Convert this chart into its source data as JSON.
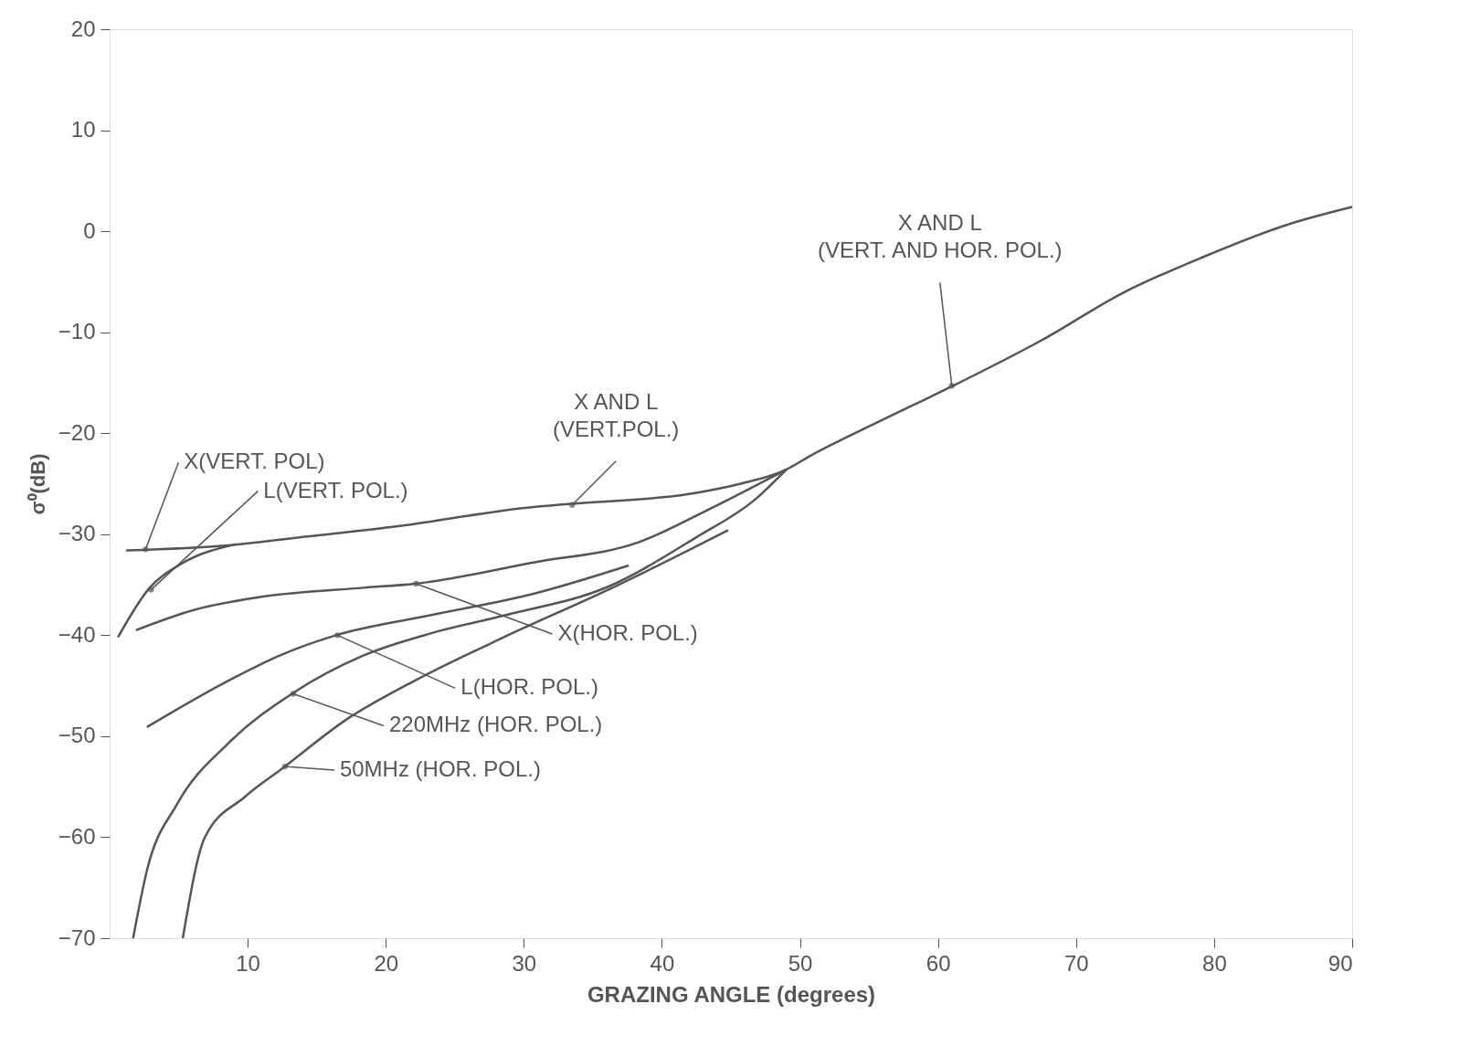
{
  "chart_data": {
    "type": "line",
    "xlabel": "GRAZING ANGLE (degrees)",
    "ylabel": "σ⁰(dB)",
    "xlim": [
      0,
      90
    ],
    "xticks": [
      10,
      20,
      30,
      40,
      50,
      60,
      70,
      80,
      90
    ],
    "ylim": [
      -70,
      20
    ],
    "yticks": [
      -70,
      -60,
      -50,
      -40,
      -30,
      -20,
      -10,
      0,
      10,
      20
    ],
    "grid": false,
    "series": [
      {
        "color": "#555555",
        "x": [
          1.2,
          8.6,
          14.5,
          20.9,
          30.7,
          33.4,
          42.5,
          45.7,
          49,
          50.8,
          55.8,
          60.8,
          67.5,
          73.4,
          79.3,
          85.2,
          90
        ],
        "values": [
          -31.6,
          -31.1,
          -30.2,
          -29.2,
          -27.3,
          -27.0,
          -25.9,
          -25.0,
          -23.6,
          -22.2,
          -18.8,
          -15.5,
          -10.8,
          -6.1,
          -2.5,
          0.6,
          2.4
        ]
      },
      {
        "color": "#555555",
        "x": [
          0.6,
          2.9,
          5.1,
          9.1
        ],
        "values": [
          -40.2,
          -35.3,
          -33,
          -31.0
        ]
      },
      {
        "color": "#555555",
        "x": [
          1.9,
          6.1,
          11,
          18.4,
          22.1,
          30.7,
          38.3,
          43.6,
          49
        ],
        "values": [
          -39.5,
          -37.5,
          -36.2,
          -35.3,
          -34.9,
          -32.8,
          -30.8,
          -27.4,
          -23.6
        ]
      },
      {
        "color": "#555555",
        "x": [
          2.7,
          8.6,
          12.5,
          16.4,
          23.3,
          30.7,
          37.6
        ],
        "values": [
          -49.1,
          -44.5,
          -41.9,
          -40.0,
          -38.0,
          -35.9,
          -33.1
        ]
      },
      {
        "color": "#555555",
        "x": [
          1.7,
          2.7,
          4.9,
          8.6,
          13.2,
          18.4,
          23.3,
          28.7,
          36.1,
          42.5,
          46.8,
          49
        ],
        "values": [
          -70,
          -63.3,
          -56.7,
          -50.7,
          -45.8,
          -42,
          -39.8,
          -38.0,
          -35.2,
          -30.3,
          -26.5,
          -23.6
        ]
      },
      {
        "color": "#555555",
        "x": [
          5.3,
          6.9,
          9.8,
          12.5,
          17.2,
          22.1,
          28.7,
          36.1,
          44.8
        ],
        "values": [
          -70,
          -60,
          -56,
          -53.2,
          -48.3,
          -44.5,
          -40.1,
          -35.5,
          -29.6
        ]
      }
    ],
    "annotations": [
      {
        "text": "X AND L\n(VERT. AND HOR. POL.)",
        "x": 61,
        "y": -15.3
      },
      {
        "text": "X AND L\n(VERT.POL.)",
        "x": 33.5,
        "y": -27.1
      },
      {
        "text": "X(VERT. POL)",
        "x": 2.6,
        "y": -31.5
      },
      {
        "text": "L(VERT. POL.)",
        "x": 3,
        "y": -35.5
      },
      {
        "text": "X(HOR. POL.)",
        "x": 22.2,
        "y": -34.9
      },
      {
        "text": "L(HOR. POL.)",
        "x": 16.5,
        "y": -40
      },
      {
        "text": "220MHz (HOR. POL.)",
        "x": 13.3,
        "y": -45.8
      },
      {
        "text": "50MHz (HOR. POL.)",
        "x": 12.7,
        "y": -53
      }
    ]
  }
}
